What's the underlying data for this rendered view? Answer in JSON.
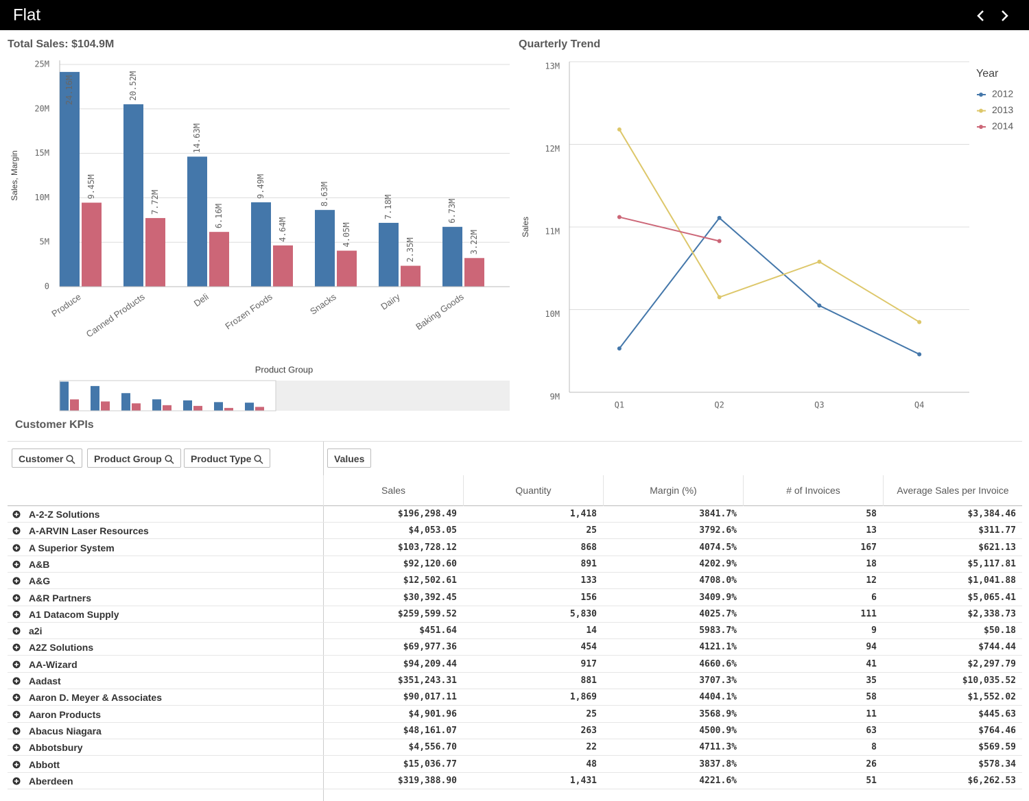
{
  "header": {
    "title": "Flat"
  },
  "chart_data": [
    {
      "type": "bar",
      "title": "Total Sales: $104.9M",
      "y_label": "Sales, Margin",
      "x_label": "Product Group",
      "categories": [
        "Produce",
        "Canned Products",
        "Deli",
        "Frozen Foods",
        "Snacks",
        "Dairy",
        "Baking Goods"
      ],
      "series": [
        {
          "color": "#4477aa",
          "values": [
            24.16,
            20.52,
            14.63,
            9.49,
            8.63,
            7.18,
            6.73
          ],
          "value_labels": [
            "24.16M",
            "20.52M",
            "14.63M",
            "9.49M",
            "8.63M",
            "7.18M",
            "6.73M"
          ]
        },
        {
          "color": "#cc6677",
          "values": [
            9.45,
            7.72,
            6.16,
            4.64,
            4.05,
            2.35,
            3.22
          ],
          "value_labels": [
            "9.45M",
            "7.72M",
            "6.16M",
            "4.64M",
            "4.05M",
            "2.35M",
            "3.22M"
          ]
        }
      ],
      "ylim": [
        0,
        25
      ],
      "yticks": [
        0,
        {
          "value": 5,
          "label": "5M"
        },
        {
          "value": 10,
          "label": "10M"
        },
        {
          "value": 15,
          "label": "15M"
        },
        {
          "value": 20,
          "label": "20M"
        },
        {
          "value": 25,
          "label": "25M"
        }
      ],
      "grid": true
    },
    {
      "type": "line",
      "title": "Quarterly Trend",
      "y_label": "Sales",
      "categories": [
        "Q1",
        "Q2",
        "Q3",
        "Q4"
      ],
      "legend_title": "Year",
      "legend_position": "right",
      "series": [
        {
          "name": "2012",
          "color": "#4477aa",
          "values": [
            9.53,
            11.11,
            10.05,
            9.46
          ]
        },
        {
          "name": "2013",
          "color": "#ddc76a",
          "values": [
            12.18,
            10.15,
            10.58,
            9.85
          ]
        },
        {
          "name": "2014",
          "color": "#cc6677",
          "values": [
            11.12,
            10.83,
            null,
            null
          ]
        }
      ],
      "ylim": [
        9,
        13
      ],
      "yticks": [
        {
          "value": 9,
          "label": "9M"
        },
        {
          "value": 10,
          "label": "10M"
        },
        {
          "value": 11,
          "label": "11M"
        },
        {
          "value": 12,
          "label": "12M"
        },
        {
          "value": 13,
          "label": "13M"
        }
      ],
      "grid": true
    }
  ],
  "table": {
    "title": "Customer KPIs",
    "dimensions": [
      "Customer",
      "Product Group",
      "Product Type"
    ],
    "values_button": "Values",
    "columns": [
      "Sales",
      "Quantity",
      "Margin (%)",
      "# of Invoices",
      "Average Sales per Invoice"
    ],
    "rows": [
      [
        "A-2-Z Solutions",
        "$196,298.49",
        "1,418",
        "3841.7%",
        "58",
        "$3,384.46"
      ],
      [
        "A-ARVIN Laser Resources",
        "$4,053.05",
        "25",
        "3792.6%",
        "13",
        "$311.77"
      ],
      [
        "A Superior System",
        "$103,728.12",
        "868",
        "4074.5%",
        "167",
        "$621.13"
      ],
      [
        "A&B",
        "$92,120.60",
        "891",
        "4202.9%",
        "18",
        "$5,117.81"
      ],
      [
        "A&G",
        "$12,502.61",
        "133",
        "4708.0%",
        "12",
        "$1,041.88"
      ],
      [
        "A&R Partners",
        "$30,392.45",
        "156",
        "3409.9%",
        "6",
        "$5,065.41"
      ],
      [
        "A1 Datacom Supply",
        "$259,599.52",
        "5,830",
        "4025.7%",
        "111",
        "$2,338.73"
      ],
      [
        "a2i",
        "$451.64",
        "14",
        "5983.7%",
        "9",
        "$50.18"
      ],
      [
        "A2Z Solutions",
        "$69,977.36",
        "454",
        "4121.1%",
        "94",
        "$744.44"
      ],
      [
        "AA-Wizard",
        "$94,209.44",
        "917",
        "4660.6%",
        "41",
        "$2,297.79"
      ],
      [
        "Aadast",
        "$351,243.31",
        "881",
        "3707.3%",
        "35",
        "$10,035.52"
      ],
      [
        "Aaron D. Meyer & Associates",
        "$90,017.11",
        "1,869",
        "4404.1%",
        "58",
        "$1,552.02"
      ],
      [
        "Aaron Products",
        "$4,901.96",
        "25",
        "3568.9%",
        "11",
        "$445.63"
      ],
      [
        "Abacus Niagara",
        "$48,161.07",
        "263",
        "4500.9%",
        "63",
        "$764.46"
      ],
      [
        "Abbotsbury",
        "$4,556.70",
        "22",
        "4711.3%",
        "8",
        "$569.59"
      ],
      [
        "Abbott",
        "$15,036.77",
        "48",
        "3837.8%",
        "26",
        "$578.34"
      ],
      [
        "Aberdeen",
        "$319,388.90",
        "1,431",
        "4221.6%",
        "51",
        "$6,262.53"
      ]
    ]
  }
}
